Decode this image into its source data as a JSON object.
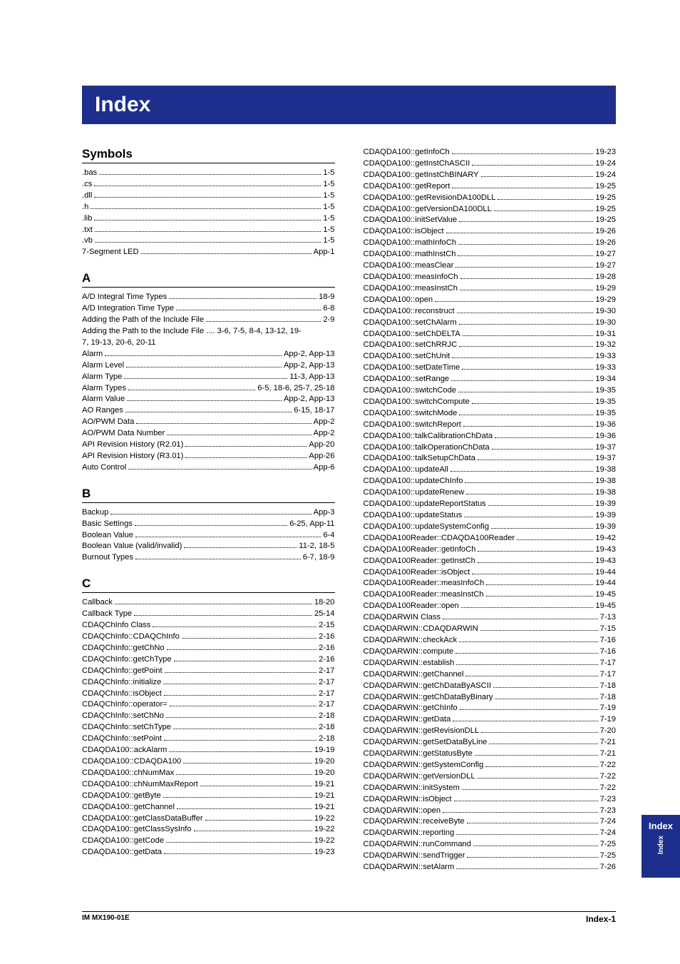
{
  "title": "Index",
  "footer": {
    "left": "IM MX190-01E",
    "right": "Index-1"
  },
  "sideTab": {
    "big": "Index",
    "small": "Index"
  },
  "left": [
    {
      "heading": "Symbols"
    },
    {
      "label": ".bas",
      "page": "1-5"
    },
    {
      "label": ".cs",
      "page": "1-5"
    },
    {
      "label": ".dll",
      "page": "1-5"
    },
    {
      "label": ".h",
      "page": "1-5"
    },
    {
      "label": ".lib",
      "page": "1-5"
    },
    {
      "label": ".txt",
      "page": "1-5"
    },
    {
      "label": ".vb",
      "page": "1-5"
    },
    {
      "label": "7-Segment LED",
      "page": "App-1"
    },
    {
      "heading": "A"
    },
    {
      "label": "A/D Integral Time Types",
      "page": "18-9"
    },
    {
      "label": "A/D Integration Time Type",
      "page": "6-8"
    },
    {
      "label": "Adding the Path of the Include File",
      "page": "2-9"
    },
    {
      "raw": "Adding the Path to the Include File .... 3-6, 7-5, 8-4, 13-12, 19-"
    },
    {
      "raw": "7, 19-13, 20-6, 20-11"
    },
    {
      "label": "Alarm",
      "page": "App-2, App-13"
    },
    {
      "label": "Alarm Level",
      "page": "App-2, App-13"
    },
    {
      "label": "Alarm Type",
      "page": "11-3, App-13"
    },
    {
      "label": "Alarm Types",
      "page": "6-5, 18-6, 25-7, 25-18"
    },
    {
      "label": "Alarm Value",
      "page": "App-2, App-13"
    },
    {
      "label": "AO Ranges",
      "page": "6-15, 18-17"
    },
    {
      "label": "AO/PWM Data",
      "page": "App-2"
    },
    {
      "label": "AO/PWM Data Number",
      "page": "App-2"
    },
    {
      "label": "API Revision History (R2.01)",
      "page": "App-20"
    },
    {
      "label": "API Revision History (R3.01)",
      "page": "App-26"
    },
    {
      "label": "Auto Control",
      "page": "App-6"
    },
    {
      "heading": "B"
    },
    {
      "label": "Backup",
      "page": "App-3"
    },
    {
      "label": "Basic Settings",
      "page": "6-25, App-11"
    },
    {
      "label": "Boolean Value",
      "page": "6-4"
    },
    {
      "label": "Boolean Value (valid/invalid)",
      "page": "11-2, 18-5"
    },
    {
      "label": "Burnout Types",
      "page": "6-7, 18-9"
    },
    {
      "heading": "C"
    },
    {
      "label": "Callback",
      "page": "18-20"
    },
    {
      "label": "Callback Type",
      "page": "25-14"
    },
    {
      "label": "CDAQChInfo Class",
      "page": "2-15"
    },
    {
      "label": "CDAQChInfo::CDAQChInfo",
      "page": "2-16"
    },
    {
      "label": "CDAQChInfo::getChNo",
      "page": "2-16"
    },
    {
      "label": "CDAQChInfo::getChType",
      "page": "2-16"
    },
    {
      "label": "CDAQChInfo::getPoint",
      "page": "2-17"
    },
    {
      "label": "CDAQChInfo::initialize",
      "page": "2-17"
    },
    {
      "label": "CDAQChInfo::isObject",
      "page": "2-17"
    },
    {
      "label": "CDAQChInfo::operator=",
      "page": "2-17"
    },
    {
      "label": "CDAQChInfo::setChNo",
      "page": "2-18"
    },
    {
      "label": "CDAQChInfo::setChType",
      "page": "2-18"
    },
    {
      "label": "CDAQChInfo::setPoint",
      "page": "2-18"
    },
    {
      "label": "CDAQDA100::ackAlarm",
      "page": "19-19"
    },
    {
      "label": "CDAQDA100::CDAQDA100",
      "page": "19-20"
    },
    {
      "label": "CDAQDA100::chNumMax",
      "page": "19-20"
    },
    {
      "label": "CDAQDA100::chNumMaxReport",
      "page": "19-21"
    },
    {
      "label": "CDAQDA100::getByte",
      "page": "19-21"
    },
    {
      "label": "CDAQDA100::getChannel",
      "page": "19-21"
    },
    {
      "label": "CDAQDA100::getClassDataBuffer",
      "page": "19-22"
    },
    {
      "label": "CDAQDA100::getClassSysInfo",
      "page": "19-22"
    },
    {
      "label": "CDAQDA100::getCode",
      "page": "19-22"
    },
    {
      "label": "CDAQDA100::getData",
      "page": "19-23"
    }
  ],
  "right": [
    {
      "label": "CDAQDA100::getInfoCh",
      "page": "19-23"
    },
    {
      "label": "CDAQDA100::getInstChASCII",
      "page": "19-24"
    },
    {
      "label": "CDAQDA100::getInstChBINARY",
      "page": "19-24"
    },
    {
      "label": "CDAQDA100::getReport",
      "page": "19-25"
    },
    {
      "label": "CDAQDA100::getRevisionDA100DLL",
      "page": "19-25"
    },
    {
      "label": "CDAQDA100::getVersionDA100DLL",
      "page": "19-25"
    },
    {
      "label": "CDAQDA100::initSetValue",
      "page": "19-25"
    },
    {
      "label": "CDAQDA100::isObject",
      "page": "19-26"
    },
    {
      "label": "CDAQDA100::mathInfoCh",
      "page": "19-26"
    },
    {
      "label": "CDAQDA100::mathInstCh",
      "page": "19-27"
    },
    {
      "label": "CDAQDA100::measClear",
      "page": "19-27"
    },
    {
      "label": "CDAQDA100::measInfoCh",
      "page": "19-28"
    },
    {
      "label": "CDAQDA100::measInstCh",
      "page": "19-29"
    },
    {
      "label": "CDAQDA100::open",
      "page": "19-29"
    },
    {
      "label": "CDAQDA100::reconstruct",
      "page": "19-30"
    },
    {
      "label": "CDAQDA100::setChAlarm",
      "page": "19-30"
    },
    {
      "label": "CDAQDA100::setChDELTA",
      "page": "19-31"
    },
    {
      "label": "CDAQDA100::setChRRJC",
      "page": "19-32"
    },
    {
      "label": "CDAQDA100::setChUnit",
      "page": "19-33"
    },
    {
      "label": "CDAQDA100::setDateTime",
      "page": "19-33"
    },
    {
      "label": "CDAQDA100::setRange",
      "page": "19-34"
    },
    {
      "label": "CDAQDA100::switchCode",
      "page": "19-35"
    },
    {
      "label": "CDAQDA100::switchCompute",
      "page": "19-35"
    },
    {
      "label": "CDAQDA100::switchMode",
      "page": "19-35"
    },
    {
      "label": "CDAQDA100::switchReport",
      "page": "19-36"
    },
    {
      "label": "CDAQDA100::talkCalibrationChData",
      "page": "19-36"
    },
    {
      "label": "CDAQDA100::talkOperationChData",
      "page": "19-37"
    },
    {
      "label": "CDAQDA100::talkSetupChData",
      "page": "19-37"
    },
    {
      "label": "CDAQDA100::updateAll",
      "page": "19-38"
    },
    {
      "label": "CDAQDA100::updateChInfo",
      "page": "19-38"
    },
    {
      "label": "CDAQDA100::updateRenew",
      "page": "19-38"
    },
    {
      "label": "CDAQDA100::updateReportStatus",
      "page": "19-39"
    },
    {
      "label": "CDAQDA100::updateStatus",
      "page": "19-39"
    },
    {
      "label": "CDAQDA100::updateSystemConfig",
      "page": "19-39"
    },
    {
      "label": "CDAQDA100Reader::CDAQDA100Reader",
      "page": "19-42"
    },
    {
      "label": "CDAQDA100Reader::getInfoCh",
      "page": "19-43"
    },
    {
      "label": "CDAQDA100Reader::getInstCh",
      "page": "19-43"
    },
    {
      "label": "CDAQDA100Reader::isObject",
      "page": "19-44"
    },
    {
      "label": "CDAQDA100Reader::measInfoCh",
      "page": "19-44"
    },
    {
      "label": "CDAQDA100Reader::measInstCh",
      "page": "19-45"
    },
    {
      "label": "CDAQDA100Reader::open",
      "page": "19-45"
    },
    {
      "label": "CDAQDARWIN Class",
      "page": "7-13"
    },
    {
      "label": "CDAQDARWIN::CDAQDARWIN",
      "page": "7-15"
    },
    {
      "label": "CDAQDARWIN::checkAck",
      "page": "7-16"
    },
    {
      "label": "CDAQDARWIN::compute",
      "page": "7-16"
    },
    {
      "label": "CDAQDARWIN::establish",
      "page": "7-17"
    },
    {
      "label": "CDAQDARWIN::getChannel",
      "page": "7-17"
    },
    {
      "label": "CDAQDARWIN::getChDataByASCII",
      "page": "7-18"
    },
    {
      "label": "CDAQDARWIN::getChDataByBinary",
      "page": "7-18"
    },
    {
      "label": "CDAQDARWIN::getChInfo",
      "page": "7-19"
    },
    {
      "label": "CDAQDARWIN::getData",
      "page": "7-19"
    },
    {
      "label": "CDAQDARWIN::getRevisionDLL",
      "page": "7-20"
    },
    {
      "label": "CDAQDARWIN::getSetDataByLine",
      "page": "7-21"
    },
    {
      "label": "CDAQDARWIN::getStatusByte",
      "page": "7-21"
    },
    {
      "label": "CDAQDARWIN::getSystemConfig",
      "page": "7-22"
    },
    {
      "label": "CDAQDARWIN::getVersionDLL",
      "page": "7-22"
    },
    {
      "label": "CDAQDARWIN::initSystem",
      "page": "7-22"
    },
    {
      "label": "CDAQDARWIN::isObject",
      "page": "7-23"
    },
    {
      "label": "CDAQDARWIN::open",
      "page": "7-23"
    },
    {
      "label": "CDAQDARWIN::receiveByte",
      "page": "7-24"
    },
    {
      "label": "CDAQDARWIN::reporting",
      "page": "7-24"
    },
    {
      "label": "CDAQDARWIN::runCommand",
      "page": "7-25"
    },
    {
      "label": "CDAQDARWIN::sendTrigger",
      "page": "7-25"
    },
    {
      "label": "CDAQDARWIN::setAlarm",
      "page": "7-26"
    }
  ]
}
